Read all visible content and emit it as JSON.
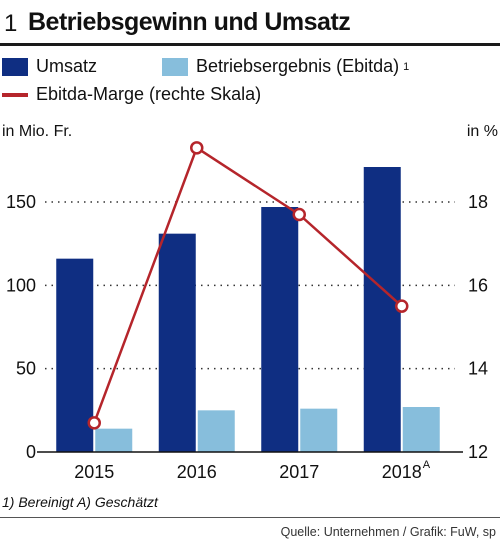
{
  "header": {
    "number": "1",
    "title": "Betriebsgewinn und Umsatz"
  },
  "legend": {
    "umsatz": "Umsatz",
    "ebitda": "Betriebsergebnis (Ebitda)",
    "ebitda_sup": "1",
    "marge": "Ebitda-Marge (rechte Skala)"
  },
  "axes": {
    "left_unit": "in Mio. Fr.",
    "right_unit": "in %"
  },
  "footnote": "1) Bereinigt   A) Geschätzt",
  "source": "Quelle: Unternehmen / Grafik: FuW, sp",
  "colors": {
    "umsatz": "#0f2e82",
    "ebitda": "#87bedc",
    "marge": "#b5252b",
    "grid": "#333333"
  },
  "chart_data": {
    "type": "bar",
    "categories": [
      "2015",
      "2016",
      "2017",
      "2018"
    ],
    "category_superscripts": [
      "",
      "",
      "",
      "A"
    ],
    "series": [
      {
        "name": "Umsatz",
        "values": [
          116,
          131,
          147,
          171
        ]
      },
      {
        "name": "Betriebsergebnis (Ebitda)",
        "values": [
          14,
          25,
          26,
          27
        ]
      }
    ],
    "line_series": {
      "name": "Ebitda-Marge (rechte Skala)",
      "values": [
        12.7,
        19.3,
        17.7,
        15.5
      ]
    },
    "ylim": [
      0,
      175
    ],
    "yticks": [
      0,
      50,
      100,
      150
    ],
    "y2lim": [
      12,
      19.8
    ],
    "y2ticks": [
      12,
      14,
      16,
      18
    ],
    "grid": "dotted horizontal"
  }
}
